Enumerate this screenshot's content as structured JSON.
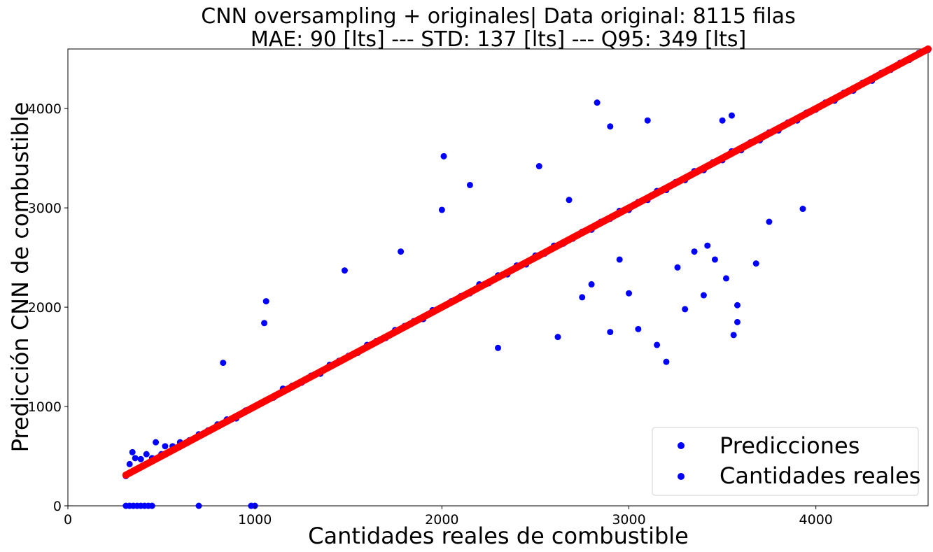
{
  "chart_data": {
    "type": "scatter",
    "title_lines": [
      "CNN oversampling + originales| Data original: 8115 filas",
      "MAE: 90 [lts] --- STD: 137 [lts] --- Q95: 349 [lts]"
    ],
    "xlabel": "Cantidades reales de combustible",
    "ylabel": "Predicción CNN de combustible",
    "xlim": [
      0,
      4600
    ],
    "ylim": [
      0,
      4600
    ],
    "x_ticks": [
      0,
      1000,
      2000,
      3000,
      4000
    ],
    "y_ticks": [
      0,
      1000,
      2000,
      3000,
      4000
    ],
    "grid": false,
    "legend_position": "lower-right",
    "series": [
      {
        "name": "Predicciones",
        "color": "#0000ff",
        "points": [
          [
            310,
            300
          ],
          [
            330,
            420
          ],
          [
            345,
            540
          ],
          [
            360,
            480
          ],
          [
            390,
            470
          ],
          [
            420,
            520
          ],
          [
            450,
            480
          ],
          [
            470,
            640
          ],
          [
            500,
            520
          ],
          [
            520,
            600
          ],
          [
            560,
            600
          ],
          [
            600,
            640
          ],
          [
            650,
            660
          ],
          [
            700,
            720
          ],
          [
            750,
            760
          ],
          [
            800,
            820
          ],
          [
            830,
            1440
          ],
          [
            850,
            870
          ],
          [
            900,
            880
          ],
          [
            950,
            960
          ],
          [
            1000,
            1000
          ],
          [
            1050,
            1840
          ],
          [
            1060,
            2060
          ],
          [
            1100,
            1090
          ],
          [
            1150,
            1180
          ],
          [
            1200,
            1210
          ],
          [
            1250,
            1240
          ],
          [
            1300,
            1310
          ],
          [
            1350,
            1330
          ],
          [
            1400,
            1420
          ],
          [
            1450,
            1460
          ],
          [
            1480,
            2370
          ],
          [
            1500,
            1510
          ],
          [
            1550,
            1540
          ],
          [
            1600,
            1620
          ],
          [
            1650,
            1660
          ],
          [
            1700,
            1690
          ],
          [
            1750,
            1770
          ],
          [
            1780,
            2560
          ],
          [
            1800,
            1810
          ],
          [
            1850,
            1860
          ],
          [
            1900,
            1880
          ],
          [
            1950,
            1970
          ],
          [
            2000,
            2980
          ],
          [
            2010,
            3520
          ],
          [
            2050,
            2060
          ],
          [
            2100,
            2110
          ],
          [
            2150,
            2140
          ],
          [
            2200,
            2230
          ],
          [
            2250,
            2240
          ],
          [
            2300,
            2320
          ],
          [
            2350,
            2330
          ],
          [
            2400,
            2420
          ],
          [
            2450,
            2430
          ],
          [
            2500,
            2520
          ],
          [
            2550,
            2540
          ],
          [
            2600,
            2620
          ],
          [
            2650,
            2640
          ],
          [
            2700,
            2690
          ],
          [
            2750,
            2760
          ],
          [
            2800,
            2780
          ],
          [
            2830,
            4060
          ],
          [
            2850,
            2860
          ],
          [
            2900,
            2890
          ],
          [
            2950,
            2970
          ],
          [
            3000,
            2980
          ],
          [
            3050,
            3060
          ],
          [
            3100,
            3080
          ],
          [
            3150,
            3170
          ],
          [
            3200,
            3180
          ],
          [
            3250,
            3260
          ],
          [
            3300,
            3280
          ],
          [
            3350,
            3370
          ],
          [
            3400,
            3380
          ],
          [
            3450,
            3460
          ],
          [
            3500,
            3480
          ],
          [
            3550,
            3570
          ],
          [
            3600,
            3580
          ],
          [
            3650,
            3660
          ],
          [
            3700,
            3680
          ],
          [
            3750,
            3760
          ],
          [
            3800,
            3780
          ],
          [
            3850,
            3860
          ],
          [
            3900,
            3880
          ],
          [
            3950,
            3960
          ],
          [
            4000,
            3990
          ],
          [
            4050,
            4060
          ],
          [
            4100,
            4080
          ],
          [
            4150,
            4160
          ],
          [
            4200,
            4180
          ],
          [
            4250,
            4260
          ],
          [
            4300,
            4280
          ],
          [
            4350,
            4360
          ],
          [
            4400,
            4390
          ],
          [
            4450,
            4460
          ],
          [
            4500,
            4490
          ],
          [
            4550,
            4560
          ],
          [
            4600,
            4590
          ],
          [
            3200,
            1450
          ],
          [
            3150,
            1620
          ],
          [
            3300,
            1980
          ],
          [
            3560,
            1720
          ],
          [
            3580,
            1850
          ],
          [
            3050,
            1780
          ],
          [
            2620,
            1700
          ],
          [
            2300,
            1590
          ],
          [
            2150,
            3230
          ],
          [
            2520,
            3420
          ],
          [
            2680,
            3080
          ],
          [
            2900,
            3820
          ],
          [
            3100,
            3880
          ],
          [
            3500,
            3880
          ],
          [
            3550,
            3930
          ],
          [
            3930,
            2990
          ],
          [
            3680,
            2440
          ],
          [
            3750,
            2860
          ],
          [
            3400,
            2120
          ],
          [
            3460,
            2480
          ],
          [
            2750,
            2100
          ],
          [
            2800,
            2230
          ],
          [
            2950,
            2480
          ],
          [
            3350,
            2560
          ],
          [
            3520,
            2290
          ],
          [
            3260,
            2400
          ],
          [
            3420,
            2620
          ],
          [
            2900,
            1750
          ],
          [
            3580,
            2020
          ],
          [
            3000,
            2140
          ],
          [
            1000,
            0
          ],
          [
            980,
            0
          ],
          [
            700,
            0
          ],
          [
            450,
            0
          ],
          [
            430,
            0
          ],
          [
            410,
            0
          ],
          [
            390,
            0
          ],
          [
            370,
            0
          ],
          [
            350,
            0
          ],
          [
            330,
            0
          ],
          [
            310,
            0
          ]
        ]
      },
      {
        "name": "Cantidades reales",
        "color": "#ff0000",
        "points": [
          [
            310,
            310
          ],
          [
            600,
            600
          ],
          [
            900,
            900
          ],
          [
            1200,
            1200
          ],
          [
            1500,
            1500
          ],
          [
            1800,
            1800
          ],
          [
            2100,
            2100
          ],
          [
            2400,
            2400
          ],
          [
            2700,
            2700
          ],
          [
            3000,
            3000
          ],
          [
            3300,
            3300
          ],
          [
            3600,
            3600
          ],
          [
            3900,
            3900
          ],
          [
            4200,
            4200
          ],
          [
            4500,
            4500
          ],
          [
            4600,
            4600
          ]
        ]
      }
    ],
    "legend": {
      "entries": [
        "Predicciones",
        "Cantidades reales"
      ]
    }
  }
}
